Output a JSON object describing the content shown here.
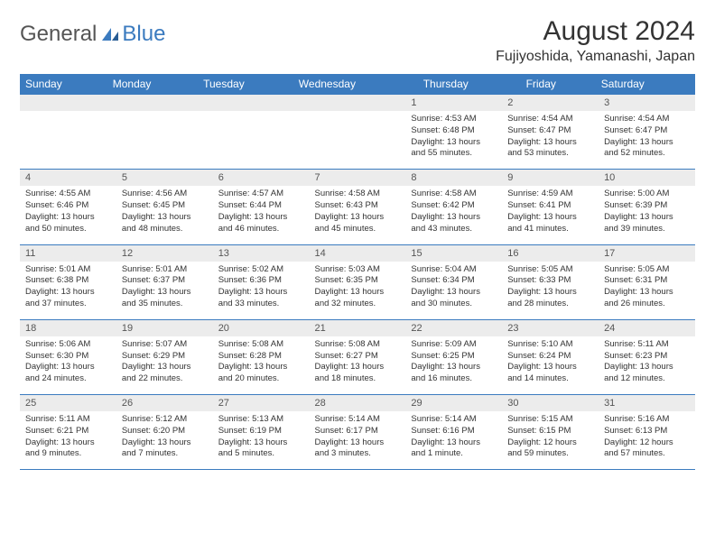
{
  "brand": {
    "part1": "General",
    "part2": "Blue"
  },
  "title": "August 2024",
  "location": "Fujiyoshida, Yamanashi, Japan",
  "colors": {
    "header_bg": "#3b7bbf",
    "header_text": "#ffffff",
    "daynum_bg": "#ececec",
    "border": "#3b7bbf",
    "body_text": "#333333",
    "background": "#ffffff"
  },
  "typography": {
    "title_fontsize": 30,
    "location_fontsize": 16,
    "dayhead_fontsize": 12,
    "daynum_fontsize": 11,
    "cell_fontsize": 9.5
  },
  "day_names": [
    "Sunday",
    "Monday",
    "Tuesday",
    "Wednesday",
    "Thursday",
    "Friday",
    "Saturday"
  ],
  "weeks": [
    [
      null,
      null,
      null,
      null,
      {
        "n": "1",
        "sr": "Sunrise: 4:53 AM",
        "ss": "Sunset: 6:48 PM",
        "dl": "Daylight: 13 hours and 55 minutes."
      },
      {
        "n": "2",
        "sr": "Sunrise: 4:54 AM",
        "ss": "Sunset: 6:47 PM",
        "dl": "Daylight: 13 hours and 53 minutes."
      },
      {
        "n": "3",
        "sr": "Sunrise: 4:54 AM",
        "ss": "Sunset: 6:47 PM",
        "dl": "Daylight: 13 hours and 52 minutes."
      }
    ],
    [
      {
        "n": "4",
        "sr": "Sunrise: 4:55 AM",
        "ss": "Sunset: 6:46 PM",
        "dl": "Daylight: 13 hours and 50 minutes."
      },
      {
        "n": "5",
        "sr": "Sunrise: 4:56 AM",
        "ss": "Sunset: 6:45 PM",
        "dl": "Daylight: 13 hours and 48 minutes."
      },
      {
        "n": "6",
        "sr": "Sunrise: 4:57 AM",
        "ss": "Sunset: 6:44 PM",
        "dl": "Daylight: 13 hours and 46 minutes."
      },
      {
        "n": "7",
        "sr": "Sunrise: 4:58 AM",
        "ss": "Sunset: 6:43 PM",
        "dl": "Daylight: 13 hours and 45 minutes."
      },
      {
        "n": "8",
        "sr": "Sunrise: 4:58 AM",
        "ss": "Sunset: 6:42 PM",
        "dl": "Daylight: 13 hours and 43 minutes."
      },
      {
        "n": "9",
        "sr": "Sunrise: 4:59 AM",
        "ss": "Sunset: 6:41 PM",
        "dl": "Daylight: 13 hours and 41 minutes."
      },
      {
        "n": "10",
        "sr": "Sunrise: 5:00 AM",
        "ss": "Sunset: 6:39 PM",
        "dl": "Daylight: 13 hours and 39 minutes."
      }
    ],
    [
      {
        "n": "11",
        "sr": "Sunrise: 5:01 AM",
        "ss": "Sunset: 6:38 PM",
        "dl": "Daylight: 13 hours and 37 minutes."
      },
      {
        "n": "12",
        "sr": "Sunrise: 5:01 AM",
        "ss": "Sunset: 6:37 PM",
        "dl": "Daylight: 13 hours and 35 minutes."
      },
      {
        "n": "13",
        "sr": "Sunrise: 5:02 AM",
        "ss": "Sunset: 6:36 PM",
        "dl": "Daylight: 13 hours and 33 minutes."
      },
      {
        "n": "14",
        "sr": "Sunrise: 5:03 AM",
        "ss": "Sunset: 6:35 PM",
        "dl": "Daylight: 13 hours and 32 minutes."
      },
      {
        "n": "15",
        "sr": "Sunrise: 5:04 AM",
        "ss": "Sunset: 6:34 PM",
        "dl": "Daylight: 13 hours and 30 minutes."
      },
      {
        "n": "16",
        "sr": "Sunrise: 5:05 AM",
        "ss": "Sunset: 6:33 PM",
        "dl": "Daylight: 13 hours and 28 minutes."
      },
      {
        "n": "17",
        "sr": "Sunrise: 5:05 AM",
        "ss": "Sunset: 6:31 PM",
        "dl": "Daylight: 13 hours and 26 minutes."
      }
    ],
    [
      {
        "n": "18",
        "sr": "Sunrise: 5:06 AM",
        "ss": "Sunset: 6:30 PM",
        "dl": "Daylight: 13 hours and 24 minutes."
      },
      {
        "n": "19",
        "sr": "Sunrise: 5:07 AM",
        "ss": "Sunset: 6:29 PM",
        "dl": "Daylight: 13 hours and 22 minutes."
      },
      {
        "n": "20",
        "sr": "Sunrise: 5:08 AM",
        "ss": "Sunset: 6:28 PM",
        "dl": "Daylight: 13 hours and 20 minutes."
      },
      {
        "n": "21",
        "sr": "Sunrise: 5:08 AM",
        "ss": "Sunset: 6:27 PM",
        "dl": "Daylight: 13 hours and 18 minutes."
      },
      {
        "n": "22",
        "sr": "Sunrise: 5:09 AM",
        "ss": "Sunset: 6:25 PM",
        "dl": "Daylight: 13 hours and 16 minutes."
      },
      {
        "n": "23",
        "sr": "Sunrise: 5:10 AM",
        "ss": "Sunset: 6:24 PM",
        "dl": "Daylight: 13 hours and 14 minutes."
      },
      {
        "n": "24",
        "sr": "Sunrise: 5:11 AM",
        "ss": "Sunset: 6:23 PM",
        "dl": "Daylight: 13 hours and 12 minutes."
      }
    ],
    [
      {
        "n": "25",
        "sr": "Sunrise: 5:11 AM",
        "ss": "Sunset: 6:21 PM",
        "dl": "Daylight: 13 hours and 9 minutes."
      },
      {
        "n": "26",
        "sr": "Sunrise: 5:12 AM",
        "ss": "Sunset: 6:20 PM",
        "dl": "Daylight: 13 hours and 7 minutes."
      },
      {
        "n": "27",
        "sr": "Sunrise: 5:13 AM",
        "ss": "Sunset: 6:19 PM",
        "dl": "Daylight: 13 hours and 5 minutes."
      },
      {
        "n": "28",
        "sr": "Sunrise: 5:14 AM",
        "ss": "Sunset: 6:17 PM",
        "dl": "Daylight: 13 hours and 3 minutes."
      },
      {
        "n": "29",
        "sr": "Sunrise: 5:14 AM",
        "ss": "Sunset: 6:16 PM",
        "dl": "Daylight: 13 hours and 1 minute."
      },
      {
        "n": "30",
        "sr": "Sunrise: 5:15 AM",
        "ss": "Sunset: 6:15 PM",
        "dl": "Daylight: 12 hours and 59 minutes."
      },
      {
        "n": "31",
        "sr": "Sunrise: 5:16 AM",
        "ss": "Sunset: 6:13 PM",
        "dl": "Daylight: 12 hours and 57 minutes."
      }
    ]
  ]
}
